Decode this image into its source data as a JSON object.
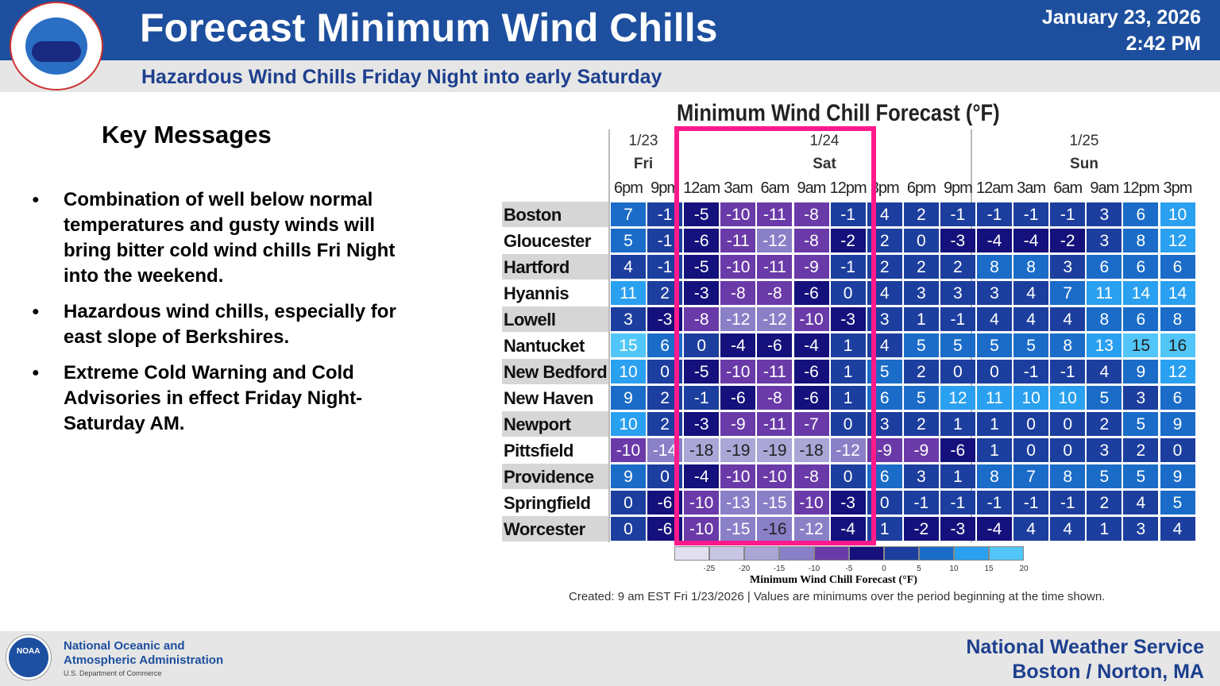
{
  "header": {
    "title": "Forecast Minimum Wind Chills",
    "subtitle": "Hazardous Wind Chills Friday Night into early Saturday",
    "date": "January 23, 2026",
    "time": "2:42 PM",
    "logo_text": "NATIONAL WEATHER SERVICE"
  },
  "key_messages": {
    "heading": "Key Messages",
    "items": [
      "Combination of well below normal temperatures and gusty winds will bring bitter cold wind chills Fri Night into the weekend.",
      "Hazardous wind chills, especially for east slope of Berkshires.",
      "Extreme Cold Warning and Cold Advisories in effect Friday Night-Saturday AM."
    ]
  },
  "chart": {
    "title": "Minimum Wind Chill Forecast (°F)",
    "days": [
      {
        "date": "1/23",
        "day": "Fri"
      },
      {
        "date": "1/24",
        "day": "Sat"
      },
      {
        "date": "1/25",
        "day": "Sun"
      }
    ],
    "times": [
      "6pm",
      "9pm",
      "12am",
      "3am",
      "6am",
      "9am",
      "12pm",
      "3pm",
      "6pm",
      "9pm",
      "12am",
      "3am",
      "6am",
      "9am",
      "12pm",
      "3pm"
    ],
    "rows": [
      {
        "city": "Boston",
        "values": [
          7,
          -1,
          -5,
          -10,
          -11,
          -8,
          -1,
          4,
          2,
          -1,
          -1,
          -1,
          -1,
          3,
          6,
          10
        ]
      },
      {
        "city": "Gloucester",
        "values": [
          5,
          -1,
          -6,
          -11,
          -12,
          -8,
          -2,
          2,
          0,
          -3,
          -4,
          -4,
          -2,
          3,
          8,
          12
        ]
      },
      {
        "city": "Hartford",
        "values": [
          4,
          -1,
          -5,
          -10,
          -11,
          -9,
          -1,
          2,
          2,
          2,
          8,
          8,
          3,
          6,
          6,
          6
        ]
      },
      {
        "city": "Hyannis",
        "values": [
          11,
          2,
          -3,
          -8,
          -8,
          -6,
          0,
          4,
          3,
          3,
          3,
          4,
          7,
          11,
          14,
          14
        ]
      },
      {
        "city": "Lowell",
        "values": [
          3,
          -3,
          -8,
          -12,
          -12,
          -10,
          -3,
          3,
          1,
          -1,
          4,
          4,
          4,
          8,
          6,
          8
        ]
      },
      {
        "city": "Nantucket",
        "values": [
          15,
          6,
          0,
          -4,
          -6,
          -4,
          1,
          4,
          5,
          5,
          5,
          5,
          8,
          13,
          15,
          16
        ]
      },
      {
        "city": "New Bedford",
        "values": [
          10,
          0,
          -5,
          -10,
          -11,
          -6,
          1,
          5,
          2,
          0,
          0,
          -1,
          -1,
          4,
          9,
          12
        ]
      },
      {
        "city": "New Haven",
        "values": [
          9,
          2,
          -1,
          -6,
          -8,
          -6,
          1,
          6,
          5,
          12,
          11,
          10,
          10,
          5,
          3,
          6
        ]
      },
      {
        "city": "Newport",
        "values": [
          10,
          2,
          -3,
          -9,
          -11,
          -7,
          0,
          3,
          2,
          1,
          1,
          0,
          0,
          2,
          5,
          9
        ]
      },
      {
        "city": "Pittsfield",
        "values": [
          -10,
          -14,
          -18,
          -19,
          -19,
          -18,
          -12,
          -9,
          -9,
          -6,
          1,
          0,
          0,
          3,
          2,
          0
        ]
      },
      {
        "city": "Providence",
        "values": [
          9,
          0,
          -4,
          -10,
          -10,
          -8,
          0,
          6,
          3,
          1,
          8,
          7,
          8,
          5,
          5,
          9
        ]
      },
      {
        "city": "Springfield",
        "values": [
          0,
          -6,
          -10,
          -13,
          -15,
          -10,
          -3,
          0,
          -1,
          -1,
          -1,
          -1,
          -1,
          2,
          4,
          5
        ]
      },
      {
        "city": "Worcester",
        "values": [
          0,
          -6,
          -10,
          -15,
          -16,
          -12,
          -4,
          1,
          -2,
          -3,
          -4,
          4,
          4,
          1,
          3,
          4
        ]
      }
    ],
    "legend": {
      "title": "Minimum Wind Chill Forecast (°F)",
      "ticks": [
        "-25",
        "-20",
        "-15",
        "-10",
        "-5",
        "0",
        "5",
        "10",
        "15",
        "20"
      ],
      "colors": [
        "#e2e0f0",
        "#c8c4e4",
        "#aaa6d6",
        "#8a80c8",
        "#6a3aa8",
        "#14107c",
        "#1c3e9e",
        "#1a6cc8",
        "#2aa0f0",
        "#52c6f8"
      ]
    },
    "highlight_color": "#ff1a8c",
    "note": "Created: 9 am EST Fri 1/23/2026  |  Values are minimums over the period beginning at the time shown."
  },
  "footer": {
    "org_line1": "National Oceanic and",
    "org_line2": "Atmospheric Administration",
    "dept": "U.S. Department of Commerce",
    "noaa": "NOAA",
    "office_line1": "National Weather Service",
    "office_line2": "Boston / Norton, MA"
  }
}
